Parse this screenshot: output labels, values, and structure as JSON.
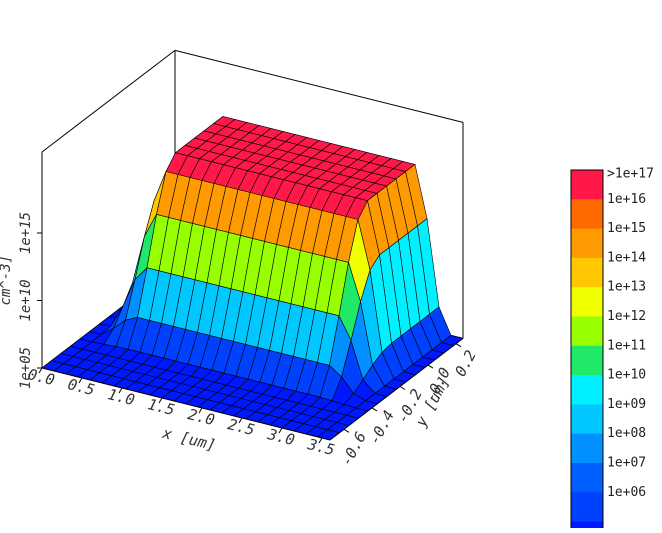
{
  "chart_data": {
    "type": "surface3d",
    "xlabel": "x [um]",
    "ylabel": "y [um]",
    "zlabel": "cm^-3]",
    "x_ticks": [
      "0.0",
      "0.5",
      "1.0",
      "1.5",
      "2.0",
      "2.5",
      "3.0",
      "3.5"
    ],
    "x_range": [
      0.0,
      3.6
    ],
    "y_ticks": [
      "-0.6",
      "-0.4",
      "-0.2",
      "-0.0",
      "0.2"
    ],
    "y_range": [
      -0.7,
      0.25
    ],
    "z_ticks": [
      "1e+05",
      "1e+10",
      "1e+15"
    ],
    "z_log_range": [
      5,
      17
    ],
    "surface": {
      "description_values": "log10 concentration: ~17 in plateau region x 0.6-3.0, y ≥ -0.1; falls to 5 outside",
      "plateau_log10": 17,
      "base_log10": 5,
      "plateau_x": [
        0.6,
        3.0
      ],
      "plateau_y_min": -0.1
    },
    "colorbar": {
      "labels": [
        ">1e+17",
        "1e+16",
        "1e+15",
        "1e+14",
        "1e+13",
        "1e+12",
        "1e+11",
        "1e+10",
        "1e+09",
        "1e+08",
        "1e+07",
        "1e+06",
        "<1e+05"
      ],
      "colors": [
        "#ff1848",
        "#ff6a00",
        "#ff9a00",
        "#ffc800",
        "#f0ff00",
        "#98ff00",
        "#20e868",
        "#00f0ff",
        "#00c8ff",
        "#0090ff",
        "#0060ff",
        "#0040ff",
        "#0018ff"
      ]
    }
  }
}
